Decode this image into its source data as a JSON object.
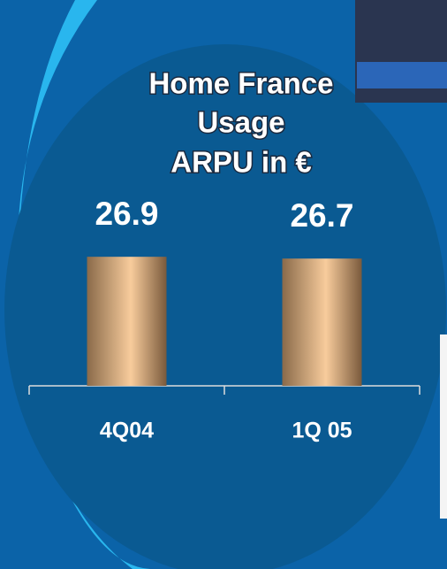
{
  "chart_data": {
    "type": "bar",
    "title": [
      "Home France",
      "Usage",
      "ARPU in €"
    ],
    "categories": [
      "4Q04",
      "1Q 05"
    ],
    "values": [
      26.9,
      26.7
    ],
    "color": "#f8cc9c",
    "ylim": [
      12.4,
      30
    ]
  }
}
